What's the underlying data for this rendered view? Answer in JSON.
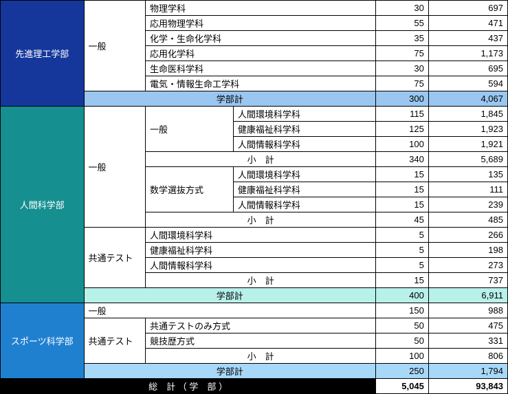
{
  "colors": {
    "f_blue": "#15379b",
    "f_teal": "#158f8f",
    "f_sky": "#2080d0",
    "sub_blue": "#9ac6f0",
    "sub_teal": "#b8f0ea",
    "sub_sky": "#a8d8f8",
    "grand_bg": "#000000",
    "grand_fg": "#ffffff"
  },
  "labels": {
    "gakubu_kei": "学部計",
    "shoukei": "小　計",
    "soukei": "総　計 （ 学　部 ）",
    "ippan": "一般",
    "kyoutsu": "共通テスト",
    "math_sel": "数学選抜方式",
    "kyoutsu_only": "共通テストのみ方式",
    "kyougireki": "競技歴方式"
  },
  "blue": {
    "name": "先進理工学部",
    "rows": [
      {
        "d": "物理学科",
        "n1": 30,
        "n2": 697
      },
      {
        "d": "応用物理学科",
        "n1": 55,
        "n2": 471
      },
      {
        "d": "化学・生命化学科",
        "n1": 35,
        "n2": 437
      },
      {
        "d": "応用化学科",
        "n1": 75,
        "n2": 1173,
        "n2s": "1,173"
      },
      {
        "d": "生命医科学科",
        "n1": 30,
        "n2": 695
      },
      {
        "d": "電気・情報生命工学科",
        "n1": 75,
        "n2": 594
      }
    ],
    "total": {
      "n1": 300,
      "n2": "4,067"
    }
  },
  "teal": {
    "name": "人間科学部",
    "ippan_sub1": [
      {
        "d": "人間環境科学科",
        "n1": 115,
        "n2": "1,845"
      },
      {
        "d": "健康福祉科学科",
        "n1": 125,
        "n2": "1,923"
      },
      {
        "d": "人間情報科学科",
        "n1": 100,
        "n2": "1,921"
      }
    ],
    "ippan_sub1_total": {
      "n1": 340,
      "n2": "5,689"
    },
    "ippan_sub2": [
      {
        "d": "人間環境科学科",
        "n1": 15,
        "n2": 135
      },
      {
        "d": "健康福祉科学科",
        "n1": 15,
        "n2": 111
      },
      {
        "d": "人間情報科学科",
        "n1": 15,
        "n2": 239
      }
    ],
    "ippan_sub2_total": {
      "n1": 45,
      "n2": 485
    },
    "kyoutsu": [
      {
        "d": "人間環境科学科",
        "n1": 5,
        "n2": 266
      },
      {
        "d": "健康福祉科学科",
        "n1": 5,
        "n2": 198
      },
      {
        "d": "人間情報科学科",
        "n1": 5,
        "n2": 273
      }
    ],
    "kyoutsu_total": {
      "n1": 15,
      "n2": 737
    },
    "total": {
      "n1": 400,
      "n2": "6,911"
    }
  },
  "sky": {
    "name": "スポーツ科学部",
    "ippan": {
      "n1": 150,
      "n2": 988
    },
    "kyoutsu": [
      {
        "d": "共通テストのみ方式",
        "n1": 50,
        "n2": 475
      },
      {
        "d": "競技歴方式",
        "n1": 50,
        "n2": 331
      }
    ],
    "kyoutsu_total": {
      "n1": 100,
      "n2": 806
    },
    "total": {
      "n1": 250,
      "n2": "1,794"
    }
  },
  "grand": {
    "n1": "5,045",
    "n2": "93,843"
  }
}
